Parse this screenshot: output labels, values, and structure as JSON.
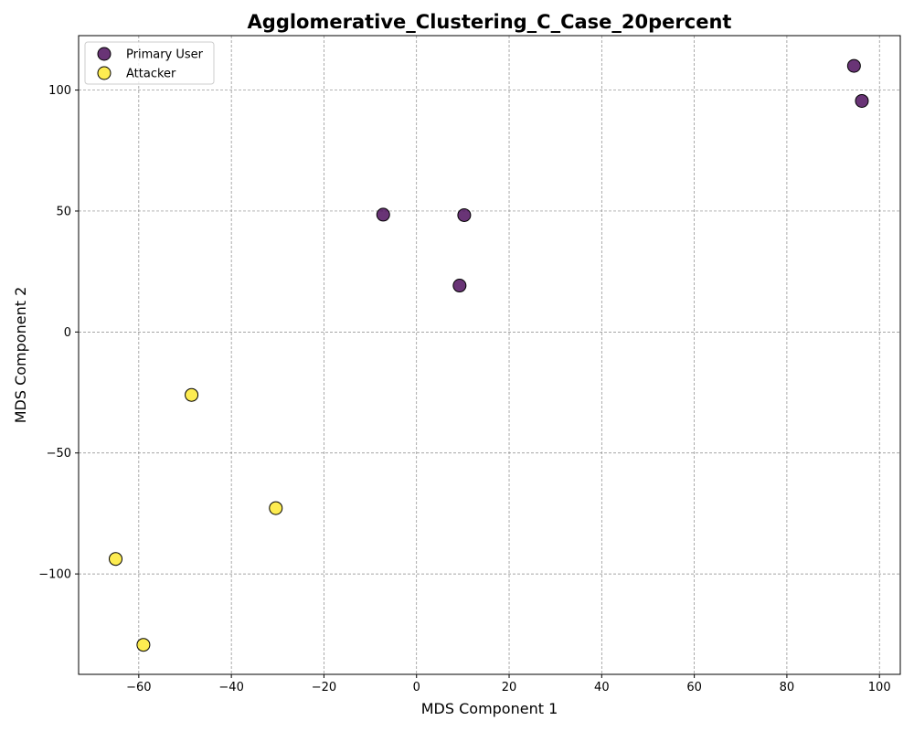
{
  "chart_data": {
    "type": "scatter",
    "title": "Agglomerative_Clustering_C_Case_20percent",
    "xlabel": "MDS Component 1",
    "ylabel": "MDS Component 2",
    "xlim": [
      -73.0,
      104.5
    ],
    "ylim": [
      -141.5,
      122.5
    ],
    "xticks": [
      -60,
      -40,
      -20,
      0,
      20,
      40,
      60,
      80,
      100
    ],
    "yticks": [
      -100,
      -50,
      0,
      50,
      100
    ],
    "grid": true,
    "legend_position": "top-left",
    "series": [
      {
        "name": "Primary User",
        "color": "#440154",
        "points": [
          {
            "x": 94.5,
            "y": 110.0
          },
          {
            "x": 96.2,
            "y": 95.5
          },
          {
            "x": -7.2,
            "y": 48.5
          },
          {
            "x": 10.3,
            "y": 48.3
          },
          {
            "x": 9.3,
            "y": 19.2
          }
        ]
      },
      {
        "name": "Attacker",
        "color": "#fde725",
        "points": [
          {
            "x": -48.6,
            "y": -26.0
          },
          {
            "x": -30.4,
            "y": -72.8
          },
          {
            "x": -65.0,
            "y": -93.8
          },
          {
            "x": -59.0,
            "y": -129.3
          }
        ]
      }
    ]
  }
}
